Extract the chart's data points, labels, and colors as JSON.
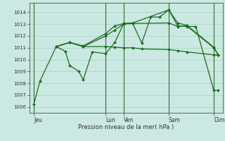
{
  "background_color": "#cce8e2",
  "grid_color": "#99ccbb",
  "line_color": "#1a6b1a",
  "xlabel": "Pression niveau de la mer( hPa )",
  "ylim": [
    1005.5,
    1014.8
  ],
  "day_labels": [
    "Jeu",
    "Lun",
    "Ven",
    "Sam",
    "Dim"
  ],
  "day_positions": [
    0.5,
    8.5,
    10.5,
    15.5,
    20.5
  ],
  "xlim": [
    0,
    21.5
  ],
  "lines": [
    {
      "x": [
        0.5,
        1.2,
        3.0,
        4.5,
        6.0,
        8.5,
        9.5,
        10.5,
        11.5,
        12.5,
        15.5,
        16.5,
        17.5,
        20.5,
        21.0
      ],
      "y": [
        1006.2,
        1008.2,
        1011.1,
        1011.45,
        1011.1,
        1011.1,
        1011.05,
        1011.0,
        1011.0,
        1010.9,
        1010.85,
        1010.75,
        1010.65,
        1010.4,
        1010.4
      ]
    },
    {
      "x": [
        3.0,
        4.5,
        6.0,
        8.5,
        9.5,
        10.5,
        11.5,
        15.5,
        16.5,
        17.5,
        20.5,
        21.0
      ],
      "y": [
        1011.1,
        1011.45,
        1011.1,
        1012.0,
        1012.5,
        1013.0,
        1013.05,
        1013.1,
        1012.8,
        1012.85,
        1011.0,
        1010.4
      ]
    },
    {
      "x": [
        3.0,
        4.5,
        6.0,
        8.5,
        9.5,
        10.5,
        11.5,
        15.5,
        16.5,
        17.5,
        20.5,
        21.0
      ],
      "y": [
        1011.1,
        1011.45,
        1011.15,
        1012.2,
        1012.85,
        1013.05,
        1013.1,
        1014.2,
        1013.1,
        1012.9,
        1011.05,
        1010.4
      ]
    },
    {
      "x": [
        3.0,
        4.0,
        4.5,
        5.5,
        6.0,
        7.0,
        8.5,
        9.5,
        10.5,
        11.5,
        12.5,
        13.5,
        14.5,
        15.5,
        16.5,
        17.5,
        18.5,
        20.5,
        21.0
      ],
      "y": [
        1011.1,
        1010.7,
        1009.5,
        1009.0,
        1008.3,
        1010.65,
        1010.5,
        1011.45,
        1013.05,
        1013.05,
        1011.4,
        1013.6,
        1013.6,
        1014.2,
        1012.85,
        1012.8,
        1012.8,
        1007.4,
        1007.4
      ]
    }
  ]
}
